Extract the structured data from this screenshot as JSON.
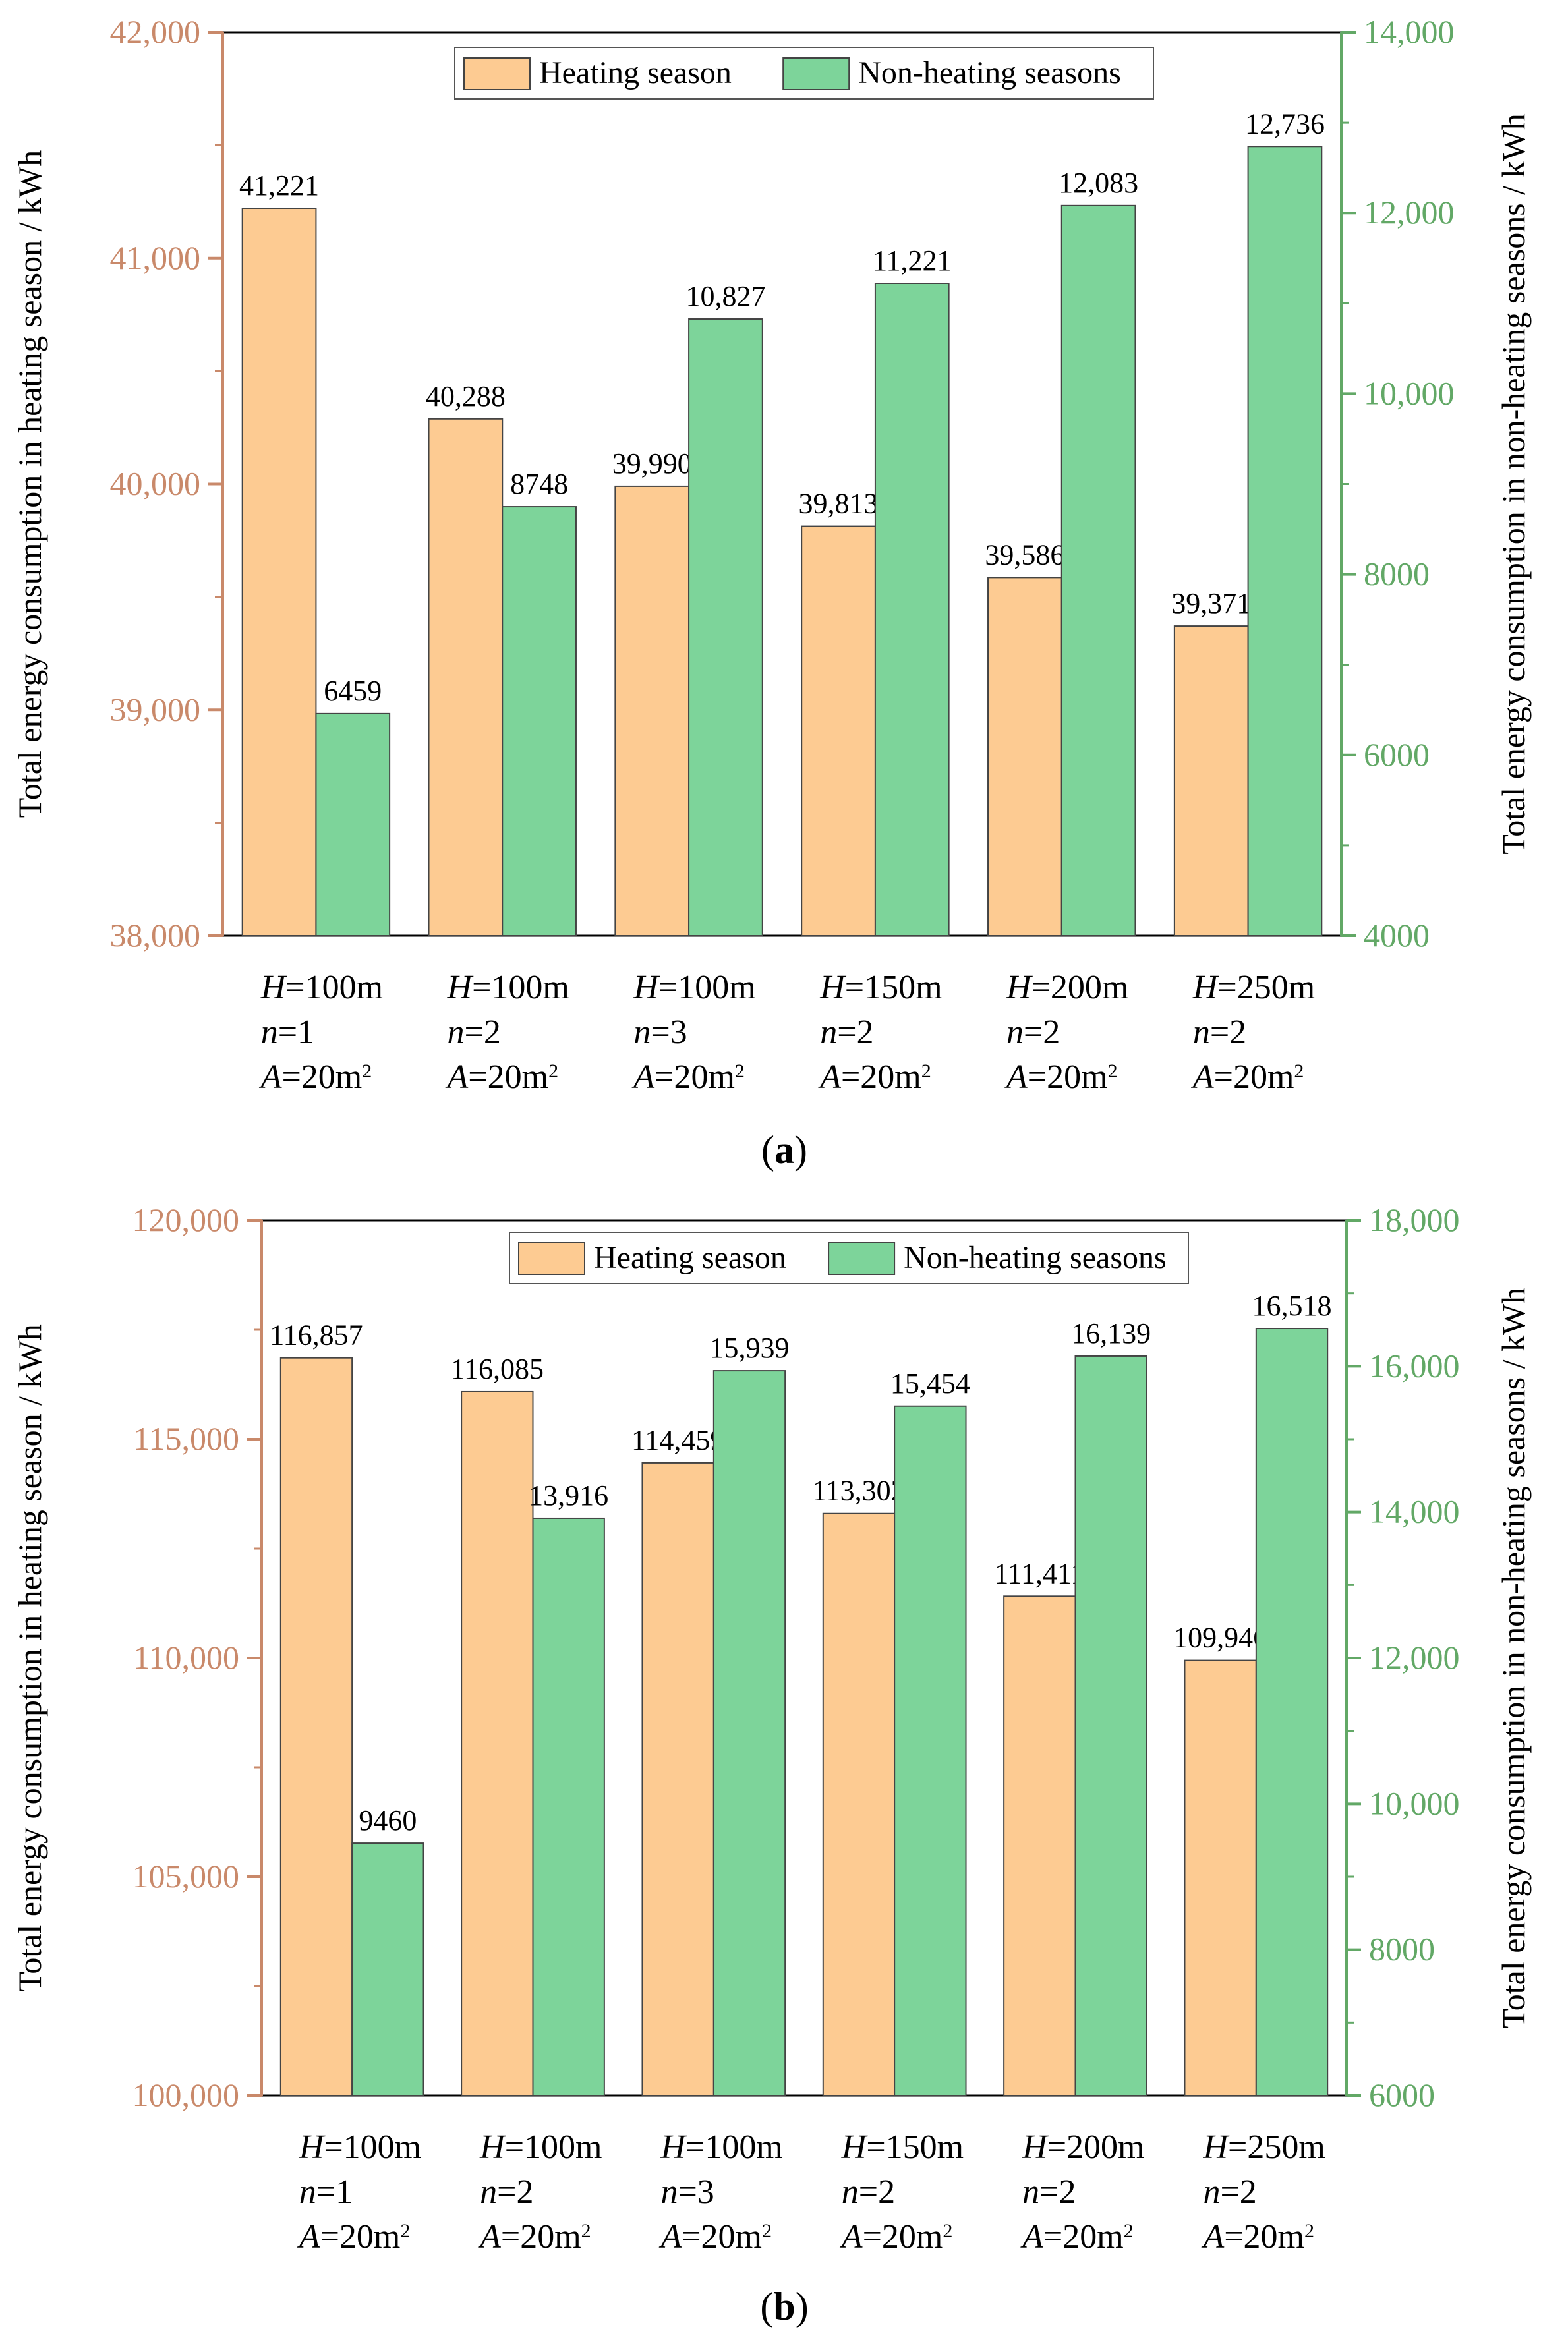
{
  "colors": {
    "heating": "#FDCB92",
    "non_heating": "#7DD49A",
    "left_axis": "#C9896A",
    "right_axis": "#62A866",
    "bar_stroke": "#444444",
    "frame": "#000000"
  },
  "chart_data": [
    {
      "type": "bar",
      "panel_label": "a",
      "categories": [
        [
          "H=100m",
          "n=1",
          "A=20m2"
        ],
        [
          "H=100m",
          "n=2",
          "A=20m2"
        ],
        [
          "H=100m",
          "n=3",
          "A=20m2"
        ],
        [
          "H=150m",
          "n=2",
          "A=20m2"
        ],
        [
          "H=200m",
          "n=2",
          "A=20m2"
        ],
        [
          "H=250m",
          "n=2",
          "A=20m2"
        ]
      ],
      "series": [
        {
          "name": "Heating season",
          "axis": "left",
          "values": [
            41221,
            40288,
            39990,
            39813,
            39586,
            39371
          ],
          "labels": [
            "41,221",
            "40,288",
            "39,990",
            "39,813",
            "39,586",
            "39,371"
          ]
        },
        {
          "name": "Non-heating seasons",
          "axis": "right",
          "values": [
            6459,
            8748,
            10827,
            11221,
            12083,
            12736
          ],
          "labels": [
            "6459",
            "8748",
            "10,827",
            "11,221",
            "12,083",
            "12,736"
          ]
        }
      ],
      "ylabel_left": "Total energy consumption in heating season / kWh",
      "ylabel_right": "Total energy consumption in non-heating seasons / kWh",
      "ylim_left": [
        38000,
        42000
      ],
      "ylim_right": [
        4000,
        14000
      ],
      "yticks_left": [
        "38,000",
        "39,000",
        "40,000",
        "41,000",
        "42,000"
      ],
      "yticks_right": [
        "4000",
        "6000",
        "8000",
        "10,000",
        "12,000",
        "14,000"
      ],
      "legend": [
        "Heating season",
        "Non-heating seasons"
      ],
      "legend_position": "top-right"
    },
    {
      "type": "bar",
      "panel_label": "b",
      "categories": [
        [
          "H=100m",
          "n=1",
          "A=20m2"
        ],
        [
          "H=100m",
          "n=2",
          "A=20m2"
        ],
        [
          "H=100m",
          "n=3",
          "A=20m2"
        ],
        [
          "H=150m",
          "n=2",
          "A=20m2"
        ],
        [
          "H=200m",
          "n=2",
          "A=20m2"
        ],
        [
          "H=250m",
          "n=2",
          "A=20m2"
        ]
      ],
      "series": [
        {
          "name": "Heating season",
          "axis": "left",
          "values": [
            116857,
            116085,
            114459,
            113302,
            111411,
            109946
          ],
          "labels": [
            "116,857",
            "116,085",
            "114,459",
            "113,302",
            "111,411",
            "109,946"
          ]
        },
        {
          "name": "Non-heating seasons",
          "axis": "right",
          "values": [
            9460,
            13916,
            15939,
            15454,
            16139,
            16518
          ],
          "labels": [
            "9460",
            "13,916",
            "15,939",
            "15,454",
            "16,139",
            "16,518"
          ]
        }
      ],
      "ylabel_left": "Total energy consumption in heating season / kWh",
      "ylabel_right": "Total energy consumption in non-heating seasons / kWh",
      "ylim_left": [
        100000,
        120000
      ],
      "ylim_right": [
        6000,
        18000
      ],
      "yticks_left": [
        "100,000",
        "105,000",
        "110,000",
        "115,000",
        "120,000"
      ],
      "yticks_right": [
        "6000",
        "8000",
        "10,000",
        "12,000",
        "14,000",
        "16,000",
        "18,000"
      ],
      "legend": [
        "Heating season",
        "Non-heating seasons"
      ],
      "legend_position": "top-right"
    }
  ]
}
